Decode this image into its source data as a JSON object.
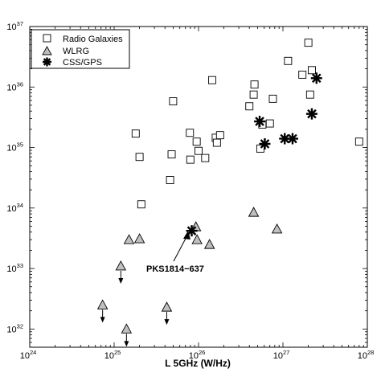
{
  "chart_data": {
    "type": "scatter",
    "title": "",
    "xlabel": "L 5GHz (W/Hz)",
    "ylabel": "",
    "x_scale": "log",
    "y_scale": "log",
    "xlim": [
      1e+24,
      1e+28
    ],
    "ylim": [
      5e+31,
      1e+37
    ],
    "x_ticks": [
      {
        "base": "10",
        "exp": "24"
      },
      {
        "base": "10",
        "exp": "25"
      },
      {
        "base": "10",
        "exp": "26"
      },
      {
        "base": "10",
        "exp": "27"
      },
      {
        "base": "10",
        "exp": "28"
      }
    ],
    "y_ticks": [
      {
        "base": "10",
        "exp": "32"
      },
      {
        "base": "10",
        "exp": "33"
      },
      {
        "base": "10",
        "exp": "34"
      },
      {
        "base": "10",
        "exp": "35"
      },
      {
        "base": "10",
        "exp": "36"
      },
      {
        "base": "10",
        "exp": "37"
      }
    ],
    "grid": false,
    "legend_position": "top-left",
    "series": [
      {
        "name": "Radio Galaxies",
        "marker": "open-square",
        "color": "#000000",
        "points": [
          [
            1.8e+25,
            1.7e+35
          ],
          [
            2e+25,
            7e+34
          ],
          [
            2.1e+25,
            1.15e+34
          ],
          [
            4.6e+25,
            2.9e+34
          ],
          [
            4.8e+25,
            7.7e+34
          ],
          [
            5e+25,
            5.8e+35
          ],
          [
            7.9e+25,
            1.75e+35
          ],
          [
            8e+25,
            6.3e+34
          ],
          [
            9.5e+25,
            1.25e+35
          ],
          [
            1e+26,
            8.8e+34
          ],
          [
            1.2e+26,
            6.7e+34
          ],
          [
            1.45e+26,
            1.3e+36
          ],
          [
            1.6e+26,
            1.45e+35
          ],
          [
            1.65e+26,
            1.2e+35
          ],
          [
            1.8e+26,
            1.6e+35
          ],
          [
            4e+26,
            4.8e+35
          ],
          [
            4.5e+26,
            7.5e+35
          ],
          [
            4.6e+26,
            1.1e+36
          ],
          [
            5.4e+26,
            9.6e+34
          ],
          [
            5.7e+26,
            2.4e+35
          ],
          [
            7e+26,
            2.5e+35
          ],
          [
            7.6e+26,
            6.4e+35
          ],
          [
            1.15e+27,
            2.7e+36
          ],
          [
            1.7e+27,
            1.6e+36
          ],
          [
            2e+27,
            5.4e+36
          ],
          [
            2.1e+27,
            7.5e+35
          ],
          [
            2.2e+27,
            1.9e+36
          ],
          [
            8e+27,
            1.25e+35
          ]
        ]
      },
      {
        "name": "WLRG",
        "marker": "filled-triangle",
        "color": "#c0c0c0",
        "points": [
          [
            7.3e+24,
            2.5e+32,
            "upper-limit"
          ],
          [
            1.2e+25,
            1.1e+33,
            "upper-limit"
          ],
          [
            1.4e+25,
            1e+32,
            "upper-limit"
          ],
          [
            1.5e+25,
            3e+33,
            null
          ],
          [
            2e+25,
            3.1e+33,
            null
          ],
          [
            4.2e+25,
            2.3e+32,
            "upper-limit"
          ],
          [
            9.3e+25,
            4.9e+33,
            null
          ],
          [
            9.6e+25,
            3e+33,
            null
          ],
          [
            1.35e+26,
            2.5e+33,
            null
          ],
          [
            4.5e+26,
            8.5e+33,
            null
          ],
          [
            8.5e+26,
            4.5e+33,
            null
          ]
        ]
      },
      {
        "name": "CSS/GPS",
        "marker": "asterisk",
        "color": "#000000",
        "points": [
          [
            8.3e+25,
            4.2e+33
          ],
          [
            5.3e+26,
            2.7e+35
          ],
          [
            6.1e+26,
            1.15e+35
          ],
          [
            1.05e+27,
            1.4e+35
          ],
          [
            1.3e+27,
            1.4e+35
          ],
          [
            2.2e+27,
            3.6e+35
          ],
          [
            2.5e+27,
            1.4e+36
          ]
        ]
      }
    ],
    "annotations": [
      {
        "text": "PKS1814−637",
        "points_to": [
          8.3e+25,
          4.2e+33
        ]
      }
    ]
  }
}
